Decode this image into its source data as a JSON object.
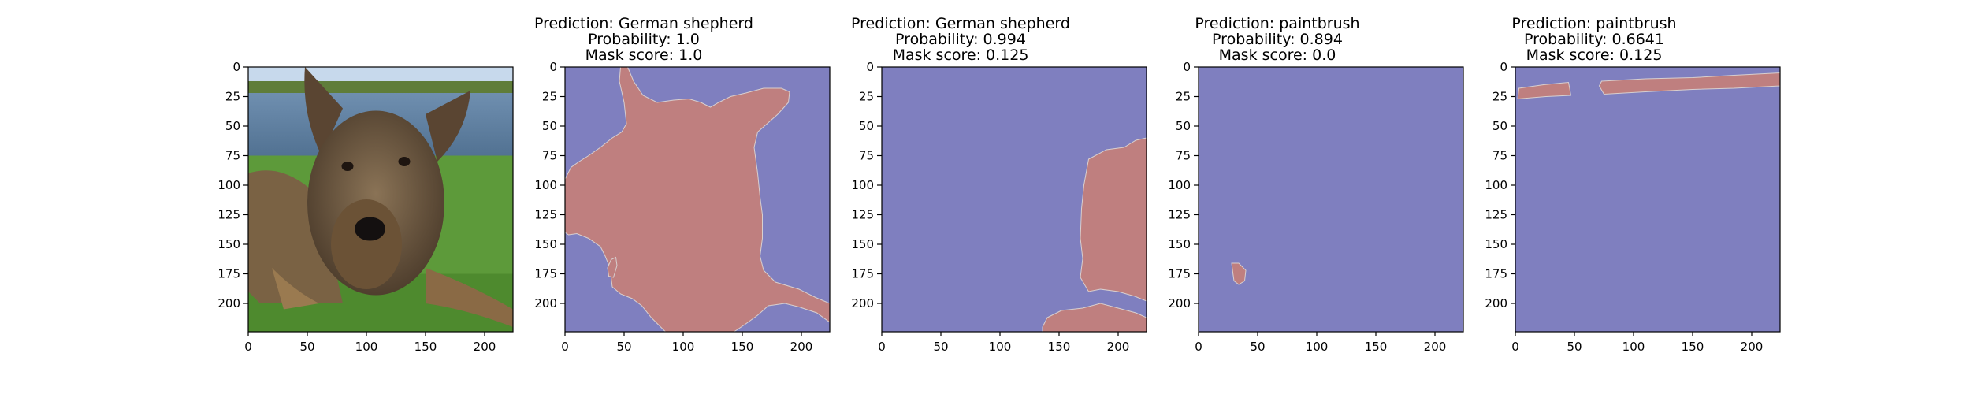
{
  "colors": {
    "background_region": "#7f7fbf",
    "mask_region": "#bf7f7f",
    "axis": "#000000"
  },
  "chart_data": [
    {
      "type": "image",
      "panel": "original-photo",
      "content": "photograph",
      "title_lines": [],
      "xlim": [
        0,
        224
      ],
      "ylim": [
        224,
        0
      ],
      "xticks": [
        0,
        50,
        100,
        150,
        200
      ],
      "yticks": [
        0,
        25,
        50,
        75,
        100,
        125,
        150,
        175,
        200
      ]
    },
    {
      "type": "mask",
      "panel": "mask-1",
      "title_lines": [
        "Prediction: German shepherd",
        "Probability: 1.0",
        "Mask score: 1.0"
      ],
      "xlim": [
        0,
        224
      ],
      "ylim": [
        224,
        0
      ],
      "xticks": [
        0,
        50,
        100,
        150,
        200
      ],
      "yticks": [
        0,
        25,
        50,
        75,
        100,
        125,
        150,
        175,
        200
      ],
      "regions": [
        [
          [
            47,
            0
          ],
          [
            53,
            0
          ],
          [
            58,
            12
          ],
          [
            66,
            24
          ],
          [
            78,
            30
          ],
          [
            92,
            28
          ],
          [
            105,
            27
          ],
          [
            115,
            30
          ],
          [
            123,
            34
          ],
          [
            130,
            30
          ],
          [
            140,
            25
          ],
          [
            153,
            22
          ],
          [
            168,
            18
          ],
          [
            183,
            18
          ],
          [
            190,
            21
          ],
          [
            189,
            30
          ],
          [
            180,
            40
          ],
          [
            171,
            48
          ],
          [
            163,
            55
          ],
          [
            160,
            68
          ],
          [
            163,
            90
          ],
          [
            165,
            110
          ],
          [
            167,
            125
          ],
          [
            167,
            145
          ],
          [
            165,
            160
          ],
          [
            168,
            172
          ],
          [
            178,
            182
          ],
          [
            198,
            188
          ],
          [
            212,
            195
          ],
          [
            224,
            200
          ],
          [
            224,
            216
          ],
          [
            213,
            208
          ],
          [
            198,
            203
          ],
          [
            186,
            200
          ],
          [
            172,
            202
          ],
          [
            163,
            210
          ],
          [
            152,
            218
          ],
          [
            143,
            224
          ],
          [
            85,
            224
          ],
          [
            73,
            212
          ],
          [
            65,
            202
          ],
          [
            57,
            196
          ],
          [
            47,
            192
          ],
          [
            40,
            186
          ],
          [
            38,
            170
          ],
          [
            34,
            160
          ],
          [
            30,
            152
          ],
          [
            20,
            145
          ],
          [
            10,
            141
          ],
          [
            3,
            142
          ],
          [
            0,
            140
          ],
          [
            0,
            95
          ],
          [
            5,
            85
          ],
          [
            12,
            80
          ],
          [
            20,
            75
          ],
          [
            30,
            68
          ],
          [
            40,
            60
          ],
          [
            48,
            55
          ],
          [
            52,
            48
          ],
          [
            50,
            30
          ],
          [
            46,
            12
          ]
        ],
        [
          [
            39,
            163
          ],
          [
            43,
            161
          ],
          [
            44,
            168
          ],
          [
            41,
            178
          ],
          [
            37,
            177
          ],
          [
            36,
            170
          ]
        ]
      ]
    },
    {
      "type": "mask",
      "panel": "mask-2",
      "title_lines": [
        "Prediction: German shepherd",
        "Probability: 0.994",
        "Mask score: 0.125"
      ],
      "xlim": [
        0,
        224
      ],
      "ylim": [
        224,
        0
      ],
      "xticks": [
        0,
        50,
        100,
        150,
        200
      ],
      "yticks": [
        0,
        25,
        50,
        75,
        100,
        125,
        150,
        175,
        200
      ],
      "regions": [
        [
          [
            215,
            62
          ],
          [
            224,
            60
          ],
          [
            224,
            198
          ],
          [
            214,
            194
          ],
          [
            200,
            190
          ],
          [
            185,
            188
          ],
          [
            175,
            190
          ],
          [
            168,
            178
          ],
          [
            170,
            162
          ],
          [
            168,
            145
          ],
          [
            169,
            120
          ],
          [
            171,
            100
          ],
          [
            175,
            78
          ],
          [
            190,
            70
          ],
          [
            205,
            68
          ]
        ],
        [
          [
            136,
            220
          ],
          [
            140,
            212
          ],
          [
            152,
            206
          ],
          [
            170,
            204
          ],
          [
            185,
            200
          ],
          [
            200,
            204
          ],
          [
            215,
            208
          ],
          [
            224,
            212
          ],
          [
            224,
            224
          ],
          [
            136,
            224
          ]
        ]
      ]
    },
    {
      "type": "mask",
      "panel": "mask-3",
      "title_lines": [
        "Prediction: paintbrush",
        "Probability: 0.894",
        "Mask score: 0.0"
      ],
      "xlim": [
        0,
        224
      ],
      "ylim": [
        224,
        0
      ],
      "xticks": [
        0,
        50,
        100,
        150,
        200
      ],
      "yticks": [
        0,
        25,
        50,
        75,
        100,
        125,
        150,
        175,
        200
      ],
      "regions": [
        [
          [
            28,
            166
          ],
          [
            34,
            166
          ],
          [
            40,
            172
          ],
          [
            39,
            181
          ],
          [
            34,
            184
          ],
          [
            30,
            181
          ],
          [
            29,
            174
          ]
        ]
      ]
    },
    {
      "type": "mask",
      "panel": "mask-4",
      "title_lines": [
        "Prediction: paintbrush",
        "Probability: 0.6641",
        "Mask score: 0.125"
      ],
      "xlim": [
        0,
        224
      ],
      "ylim": [
        224,
        0
      ],
      "xticks": [
        0,
        50,
        100,
        150,
        200
      ],
      "yticks": [
        0,
        25,
        50,
        75,
        100,
        125,
        150,
        175,
        200
      ],
      "regions": [
        [
          [
            3,
            18
          ],
          [
            24,
            15
          ],
          [
            45,
            13
          ],
          [
            47,
            24
          ],
          [
            26,
            25
          ],
          [
            2,
            27
          ]
        ],
        [
          [
            73,
            12
          ],
          [
            110,
            10
          ],
          [
            150,
            9
          ],
          [
            185,
            7
          ],
          [
            224,
            5
          ],
          [
            224,
            16
          ],
          [
            185,
            18
          ],
          [
            150,
            19
          ],
          [
            110,
            21
          ],
          [
            75,
            23
          ],
          [
            71,
            16
          ]
        ]
      ]
    }
  ]
}
